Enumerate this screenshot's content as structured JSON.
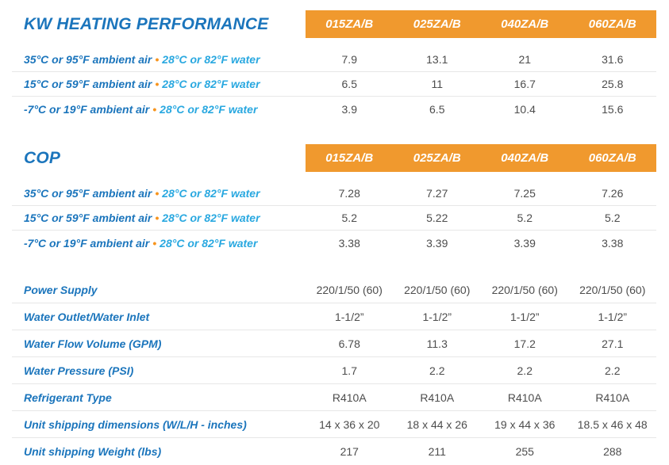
{
  "models": [
    "015ZA/B",
    "025ZA/B",
    "040ZA/B",
    "060ZA/B"
  ],
  "colors": {
    "title_blue": "#1B75BC",
    "water_cyan": "#29A8E0",
    "header_orange": "#F0992E",
    "bullet_orange": "#F7941D",
    "value_gray": "#4D4D4D",
    "divider_gray": "#E7E7E7"
  },
  "sections": {
    "kw": {
      "title": "KW HEATING PERFORMANCE",
      "rows": [
        {
          "ambient": "35°C or 95°F ambient air",
          "bullet": "•",
          "water": "28°C or 82°F water",
          "values": [
            "7.9",
            "13.1",
            "21",
            "31.6"
          ]
        },
        {
          "ambient": "15°C or 59°F ambient air",
          "bullet": "•",
          "water": "28°C or 82°F water",
          "values": [
            "6.5",
            "11",
            "16.7",
            "25.8"
          ]
        },
        {
          "ambient": "-7°C or 19°F ambient air",
          "bullet": "•",
          "water": "28°C or 82°F water",
          "values": [
            "3.9",
            "6.5",
            "10.4",
            "15.6"
          ]
        }
      ]
    },
    "cop": {
      "title": "COP",
      "rows": [
        {
          "ambient": "35°C or 95°F ambient air",
          "bullet": "•",
          "water": "28°C or 82°F water",
          "values": [
            "7.28",
            "7.27",
            "7.25",
            "7.26"
          ]
        },
        {
          "ambient": "15°C or 59°F ambient air",
          "bullet": "•",
          "water": "28°C or 82°F water",
          "values": [
            "5.2",
            "5.22",
            "5.2",
            "5.2"
          ]
        },
        {
          "ambient": "-7°C or 19°F ambient air",
          "bullet": "•",
          "water": "28°C or 82°F water",
          "values": [
            "3.38",
            "3.39",
            "3.39",
            "3.38"
          ]
        }
      ]
    },
    "specs": {
      "rows": [
        {
          "label": "Power Supply",
          "values": [
            "220/1/50 (60)",
            "220/1/50 (60)",
            "220/1/50 (60)",
            "220/1/50 (60)"
          ]
        },
        {
          "label": "Water Outlet/Water Inlet",
          "values": [
            "1-1/2”",
            "1-1/2”",
            "1-1/2”",
            "1-1/2”"
          ]
        },
        {
          "label": "Water Flow Volume (GPM)",
          "values": [
            "6.78",
            "11.3",
            "17.2",
            "27.1"
          ]
        },
        {
          "label": "Water Pressure (PSI)",
          "values": [
            "1.7",
            "2.2",
            "2.2",
            "2.2"
          ]
        },
        {
          "label": "Refrigerant Type",
          "values": [
            "R410A",
            "R410A",
            "R410A",
            "R410A"
          ]
        },
        {
          "label": "Unit shipping dimensions (W/L/H - inches)",
          "values": [
            "14 x 36 x 20",
            "18 x 44 x 26",
            "19 x 44 x 36",
            "18.5 x 46 x 48"
          ]
        },
        {
          "label": "Unit shipping Weight (lbs)",
          "values": [
            "217",
            "211",
            "255",
            "288"
          ]
        }
      ]
    }
  }
}
